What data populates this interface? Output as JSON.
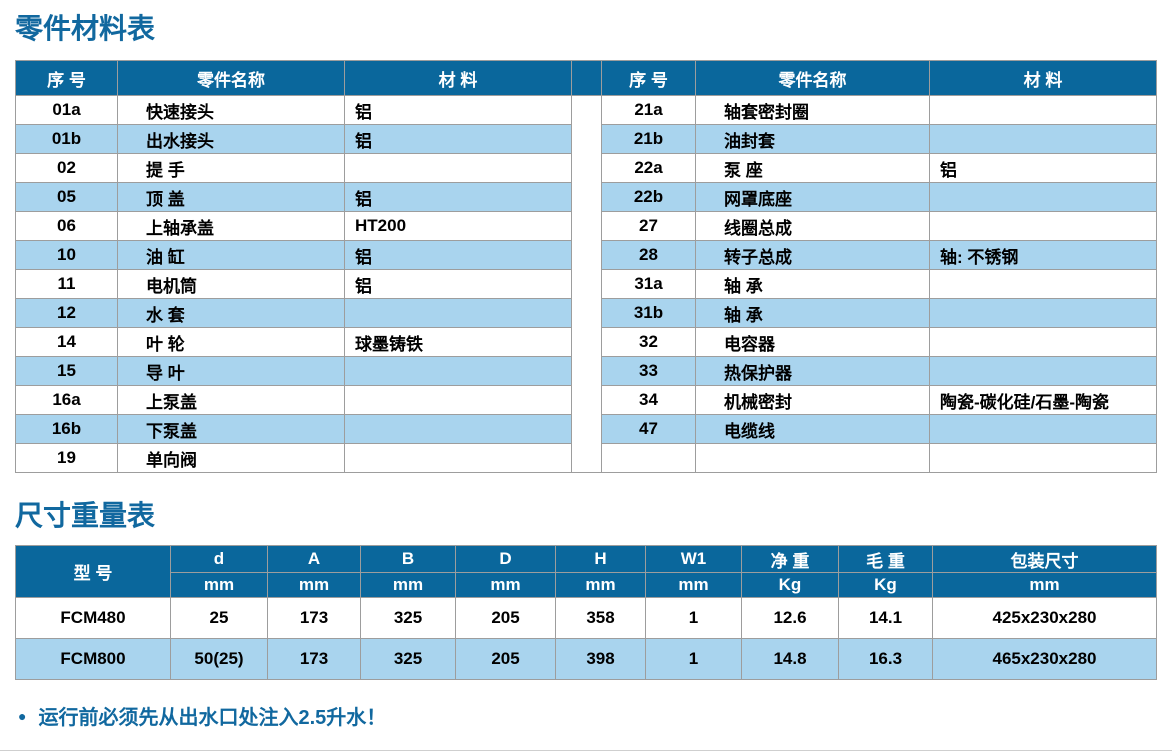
{
  "parts_table": {
    "title": "零件材料表",
    "headers": {
      "no": "序 号",
      "name": "零件名称",
      "material": "材 料"
    },
    "left_rows": [
      {
        "no": "01a",
        "name": "快速接头",
        "material": "铝"
      },
      {
        "no": "01b",
        "name": "出水接头",
        "material": "铝"
      },
      {
        "no": "02",
        "name": "提 手",
        "material": ""
      },
      {
        "no": "05",
        "name": "顶 盖",
        "material": "铝"
      },
      {
        "no": "06",
        "name": "上轴承盖",
        "material": "HT200"
      },
      {
        "no": "10",
        "name": "油 缸",
        "material": "铝"
      },
      {
        "no": "11",
        "name": "电机筒",
        "material": "铝"
      },
      {
        "no": "12",
        "name": "水 套",
        "material": ""
      },
      {
        "no": "14",
        "name": "叶 轮",
        "material": "球墨铸铁"
      },
      {
        "no": "15",
        "name": "导 叶",
        "material": ""
      },
      {
        "no": "16a",
        "name": "上泵盖",
        "material": ""
      },
      {
        "no": "16b",
        "name": "下泵盖",
        "material": ""
      },
      {
        "no": "19",
        "name": "单向阀",
        "material": ""
      }
    ],
    "right_rows": [
      {
        "no": "21a",
        "name": "轴套密封圈",
        "material": ""
      },
      {
        "no": "21b",
        "name": "油封套",
        "material": ""
      },
      {
        "no": "22a",
        "name": "泵 座",
        "material": "铝"
      },
      {
        "no": "22b",
        "name": "网罩底座",
        "material": ""
      },
      {
        "no": "27",
        "name": "线圈总成",
        "material": ""
      },
      {
        "no": "28",
        "name": "转子总成",
        "material": "轴: 不锈钢"
      },
      {
        "no": "31a",
        "name": "轴 承",
        "material": ""
      },
      {
        "no": "31b",
        "name": "轴 承",
        "material": ""
      },
      {
        "no": "32",
        "name": "电容器",
        "material": ""
      },
      {
        "no": "33",
        "name": "热保护器",
        "material": ""
      },
      {
        "no": "34",
        "name": "机械密封",
        "material": "陶瓷-碳化硅/石墨-陶瓷"
      },
      {
        "no": "47",
        "name": "电缆线",
        "material": ""
      },
      {
        "no": "",
        "name": "",
        "material": ""
      }
    ]
  },
  "dimensions_table": {
    "title": "尺寸重量表",
    "model_header": "型 号",
    "columns": [
      {
        "label": "d",
        "unit": "mm"
      },
      {
        "label": "A",
        "unit": "mm"
      },
      {
        "label": "B",
        "unit": "mm"
      },
      {
        "label": "D",
        "unit": "mm"
      },
      {
        "label": "H",
        "unit": "mm"
      },
      {
        "label": "W1",
        "unit": "mm"
      },
      {
        "label": "净 重",
        "unit": "Kg"
      },
      {
        "label": "毛 重",
        "unit": "Kg"
      },
      {
        "label": "包装尺寸",
        "unit": "mm"
      }
    ],
    "rows": [
      {
        "model": "FCM480",
        "values": [
          "25",
          "173",
          "325",
          "205",
          "358",
          "1",
          "12.6",
          "14.1",
          "425x230x280"
        ]
      },
      {
        "model": "FCM800",
        "values": [
          "50(25)",
          "173",
          "325",
          "205",
          "398",
          "1",
          "14.8",
          "16.3",
          "465x230x280"
        ]
      }
    ]
  },
  "note": {
    "bullet": "●",
    "text": "运行前必须先从出水口处注入2.5升水！"
  },
  "colors": {
    "header_blue": "#0a679c",
    "stripe_blue": "#a9d4ee",
    "title_blue": "#11689f",
    "border_gray": "#9d9d9d"
  }
}
